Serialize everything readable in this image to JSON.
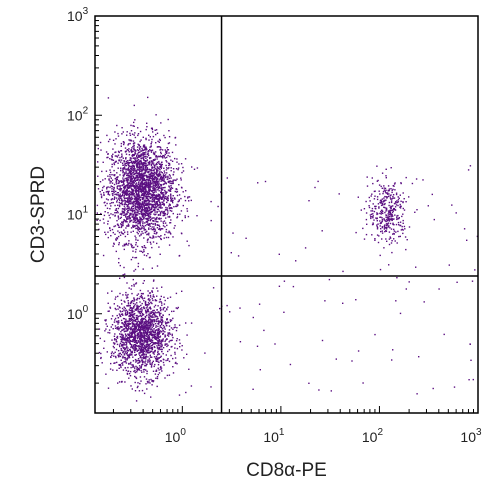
{
  "chart_data": {
    "type": "scatter",
    "title": "",
    "xlabel": "CD8α-PE",
    "ylabel": "CD3-SPRD",
    "x_scale": "log",
    "y_scale": "log",
    "xlim": [
      0.13,
      1000
    ],
    "ylim": [
      0.1,
      1000
    ],
    "x_ticks": [
      {
        "value": 1,
        "base": "10",
        "exp": "0"
      },
      {
        "value": 10,
        "base": "10",
        "exp": "1"
      },
      {
        "value": 100,
        "base": "10",
        "exp": "2"
      },
      {
        "value": 1000,
        "base": "10",
        "exp": "3"
      }
    ],
    "y_ticks": [
      {
        "value": 1,
        "base": "10",
        "exp": "0"
      },
      {
        "value": 10,
        "base": "10",
        "exp": "1"
      },
      {
        "value": 100,
        "base": "10",
        "exp": "2"
      },
      {
        "value": 1000,
        "base": "10",
        "exp": "3"
      }
    ],
    "grid": false,
    "gate_lines": {
      "x": 2.5,
      "y": 2.4
    },
    "point_color": "#5b0f82",
    "populations": [
      {
        "x_center": 0.38,
        "y_center": 18,
        "x_spread_log": 0.17,
        "y_spread_log": 0.26,
        "count": 2600
      },
      {
        "x_center": 0.38,
        "y_center": 0.62,
        "x_spread_log": 0.15,
        "y_spread_log": 0.2,
        "count": 1700
      },
      {
        "x_center": 120,
        "y_center": 11,
        "x_spread_log": 0.1,
        "y_spread_log": 0.16,
        "count": 360
      }
    ]
  }
}
